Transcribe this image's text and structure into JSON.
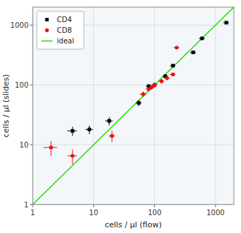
{
  "chart_data": {
    "type": "scatter",
    "x_label": "cells / µl (flow)",
    "y_label": "cells / µl (slides)",
    "log": true,
    "grid": true,
    "legend": "upper left",
    "xlim": [
      1,
      2000
    ],
    "ylim": [
      1,
      2000
    ],
    "xticks": [
      1,
      10,
      100,
      1000
    ],
    "yticks": [
      1,
      10,
      100,
      1000
    ],
    "series": [
      {
        "name": "CD4",
        "type": "scatter",
        "marker": "square",
        "color": "#000000",
        "x": [
          4.5,
          8.5,
          18.0,
          55.0,
          80.0,
          100.0,
          150.0,
          200.0,
          430.0,
          600.0,
          1500.0
        ],
        "values": [
          17.0,
          18.0,
          25.0,
          50.0,
          95.0,
          100.0,
          140.0,
          210.0,
          350.0,
          600.0,
          1100.0
        ],
        "xerr": [
          0.8,
          1.2,
          2.5,
          6.0,
          8.0,
          10.0,
          15.0,
          20.0,
          45.0,
          65.0,
          160.0
        ],
        "yerr": [
          3.0,
          3.0,
          4.0,
          6.0,
          8.5,
          9.0,
          10.5,
          13.0,
          17.0,
          22.0,
          30.0
        ]
      },
      {
        "name": "CD8",
        "type": "scatter",
        "marker": "circle",
        "color": "#ee1111",
        "x": [
          2.0,
          4.5,
          20.0,
          65.0,
          80.0,
          90.0,
          100.0,
          130.0,
          160.0,
          200.0,
          230.0
        ],
        "values": [
          9.0,
          6.5,
          14.0,
          70.0,
          85.0,
          92.0,
          100.0,
          115.0,
          130.0,
          150.0,
          420.0
        ],
        "xerr": [
          0.5,
          0.8,
          2.5,
          8.0,
          9.0,
          9.5,
          10.0,
          13.0,
          16.0,
          22.0,
          25.0
        ],
        "yerr": [
          2.5,
          1.8,
          3.0,
          7.5,
          8.0,
          8.5,
          9.0,
          10.0,
          10.5,
          11.0,
          19.0
        ]
      },
      {
        "name": "ideal",
        "type": "line",
        "color": "#22dd00",
        "x": [
          1,
          2000
        ],
        "values": [
          1,
          2000
        ]
      }
    ]
  }
}
